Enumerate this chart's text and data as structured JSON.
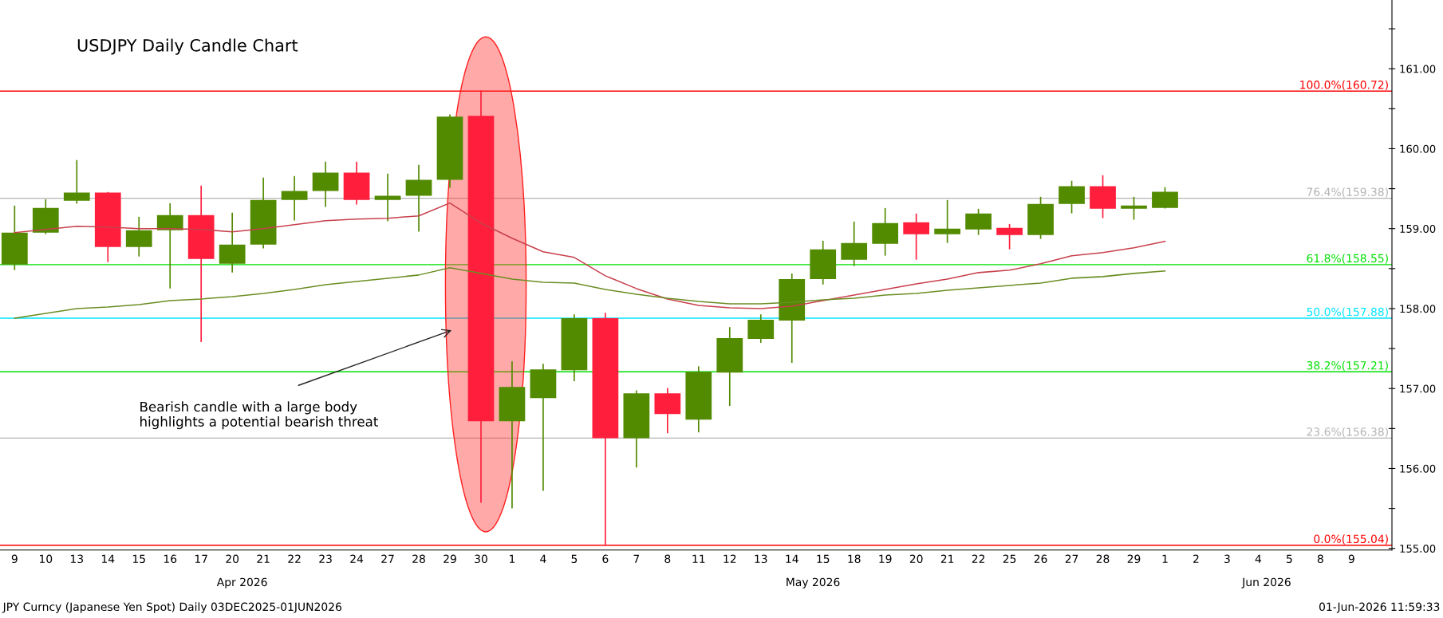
{
  "chart_data": {
    "type": "candlestick",
    "title": "USDJPY Daily Candle Chart",
    "categories": [
      "9",
      "10",
      "13",
      "14",
      "15",
      "16",
      "17",
      "20",
      "21",
      "22",
      "23",
      "24",
      "27",
      "28",
      "29",
      "30",
      "1",
      "4",
      "5",
      "6",
      "7",
      "8",
      "11",
      "12",
      "13",
      "14",
      "15",
      "18",
      "19",
      "20",
      "21",
      "22",
      "25",
      "26",
      "27",
      "28",
      "29",
      "1",
      "2",
      "3",
      "4",
      "5",
      "8",
      "9"
    ],
    "ohlc": [
      [
        158.55,
        159.28,
        158.49,
        158.95
      ],
      [
        158.95,
        159.36,
        158.94,
        159.26
      ],
      [
        159.35,
        159.85,
        159.32,
        159.45
      ],
      [
        159.45,
        159.45,
        158.59,
        158.77
      ],
      [
        158.77,
        159.14,
        158.66,
        158.98
      ],
      [
        158.98,
        159.31,
        158.26,
        159.17
      ],
      [
        159.17,
        159.53,
        157.59,
        158.62
      ],
      [
        158.56,
        159.19,
        158.46,
        158.8
      ],
      [
        158.8,
        159.63,
        158.76,
        159.36
      ],
      [
        159.36,
        159.65,
        159.11,
        159.47
      ],
      [
        159.47,
        159.83,
        159.28,
        159.7
      ],
      [
        159.7,
        159.83,
        159.31,
        159.36
      ],
      [
        159.36,
        159.68,
        159.1,
        159.41
      ],
      [
        159.41,
        159.79,
        158.97,
        159.61
      ],
      [
        159.61,
        160.42,
        159.52,
        160.4
      ],
      [
        160.41,
        160.72,
        155.58,
        156.59
      ],
      [
        156.59,
        157.33,
        155.51,
        157.02
      ],
      [
        156.88,
        157.3,
        155.73,
        157.24
      ],
      [
        157.23,
        157.92,
        157.1,
        157.88
      ],
      [
        157.88,
        157.94,
        155.04,
        156.38
      ],
      [
        156.38,
        156.97,
        156.02,
        156.94
      ],
      [
        156.94,
        157.0,
        156.45,
        156.68
      ],
      [
        156.61,
        157.27,
        156.46,
        157.21
      ],
      [
        157.2,
        157.76,
        156.79,
        157.63
      ],
      [
        157.62,
        157.92,
        157.58,
        157.86
      ],
      [
        157.85,
        158.43,
        157.33,
        158.37
      ],
      [
        158.37,
        158.84,
        158.31,
        158.74
      ],
      [
        158.61,
        159.08,
        158.54,
        158.82
      ],
      [
        158.81,
        159.25,
        158.67,
        159.07
      ],
      [
        159.08,
        159.18,
        158.62,
        158.93
      ],
      [
        158.93,
        159.35,
        158.83,
        159.0
      ],
      [
        158.99,
        159.24,
        158.93,
        159.19
      ],
      [
        159.01,
        159.05,
        158.75,
        158.92
      ],
      [
        158.92,
        159.39,
        158.88,
        159.31
      ],
      [
        159.31,
        159.59,
        159.2,
        159.53
      ],
      [
        159.53,
        159.66,
        159.14,
        159.25
      ],
      [
        159.25,
        159.39,
        159.12,
        159.29
      ],
      [
        159.26,
        159.51,
        159.26,
        159.46
      ],
      null,
      null,
      null,
      null,
      null,
      null
    ],
    "colors": [
      "#528a00",
      "#528a00",
      "#528a00",
      "#ff1f3d",
      "#528a00",
      "#528a00",
      "#ff1f3d",
      "#528a00",
      "#528a00",
      "#528a00",
      "#528a00",
      "#ff1f3d",
      "#528a00",
      "#528a00",
      "#528a00",
      "#ff1f3d",
      "#528a00",
      "#528a00",
      "#528a00",
      "#ff1f3d",
      "#528a00",
      "#ff1f3d",
      "#528a00",
      "#528a00",
      "#528a00",
      "#528a00",
      "#528a00",
      "#528a00",
      "#528a00",
      "#ff1f3d",
      "#528a00",
      "#528a00",
      "#ff1f3d",
      "#528a00",
      "#528a00",
      "#ff1f3d",
      "#528a00",
      "#528a00",
      null,
      null,
      null,
      null,
      null,
      null
    ],
    "series": [
      {
        "type": "line",
        "color": "#c8404c",
        "values": [
          158.95,
          158.99,
          159.03,
          159.02,
          159.0,
          159.0,
          158.99,
          158.96,
          159.0,
          159.05,
          159.1,
          159.12,
          159.13,
          159.16,
          159.32,
          159.07,
          158.88,
          158.71,
          158.64,
          158.41,
          158.25,
          158.12,
          158.04,
          158.01,
          158.0,
          158.03,
          158.1,
          158.17,
          158.24,
          158.31,
          158.37,
          158.45,
          158.48,
          158.56,
          158.66,
          158.7,
          158.76,
          158.84,
          null,
          null,
          null,
          null,
          null,
          null
        ]
      },
      {
        "type": "line",
        "color": "#6b8e23",
        "values": [
          157.88,
          157.94,
          158.0,
          158.02,
          158.05,
          158.1,
          158.12,
          158.15,
          158.19,
          158.24,
          158.3,
          158.34,
          158.38,
          158.42,
          158.51,
          158.44,
          158.37,
          158.33,
          158.32,
          158.24,
          158.18,
          158.13,
          158.09,
          158.06,
          158.06,
          158.08,
          158.11,
          158.13,
          158.17,
          158.19,
          158.23,
          158.26,
          158.29,
          158.32,
          158.38,
          158.4,
          158.44,
          158.47,
          null,
          null,
          null,
          null,
          null,
          null
        ]
      }
    ],
    "ylim": [
      154.98,
      161.86
    ],
    "yticks": [
      {
        "value": 155,
        "label": "155.00"
      },
      {
        "value": 155.5,
        "label": null
      },
      {
        "value": 156,
        "label": "156.00"
      },
      {
        "value": 156.5,
        "label": null
      },
      {
        "value": 157,
        "label": "157.00"
      },
      {
        "value": 157.5,
        "label": null
      },
      {
        "value": 158,
        "label": "158.00"
      },
      {
        "value": 158.5,
        "label": null
      },
      {
        "value": 159,
        "label": "159.00"
      },
      {
        "value": 159.5,
        "label": null
      },
      {
        "value": 160,
        "label": "160.00"
      },
      {
        "value": 160.5,
        "label": null
      },
      {
        "value": 161,
        "label": "161.00"
      },
      {
        "value": 161.5,
        "label": null
      }
    ],
    "ref_lines": [
      {
        "axis": "y",
        "value": 160.72,
        "label": "100.0%(160.72)",
        "color": "#ff0000"
      },
      {
        "axis": "y",
        "value": 159.38,
        "label": "76.4%(159.38)",
        "color": "#b4b4b4"
      },
      {
        "axis": "y",
        "value": 158.55,
        "label": "61.8%(158.55)",
        "color": "#00e000"
      },
      {
        "axis": "y",
        "value": 157.88,
        "label": "50.0%(157.88)",
        "color": "#00e5ff"
      },
      {
        "axis": "y",
        "value": 157.21,
        "label": "38.2%(157.21)",
        "color": "#00e000"
      },
      {
        "axis": "y",
        "value": 156.38,
        "label": "23.6%(156.38)",
        "color": "#b4b4b4"
      },
      {
        "axis": "y",
        "value": 155.04,
        "label": "0.0%(155.04)",
        "color": "#ff0000"
      }
    ],
    "annotations": [
      "Bearish candle with a large body\nhighlights a potential bearish threat",
      "Apr 2026",
      "May 2026",
      "Jun 2026",
      "JPY Curncy (Japanese Yen Spot) Daily 03DEC2025-01JUN2026",
      "01-Jun-2026 11:59:33"
    ],
    "grid": false,
    "legend": false
  }
}
